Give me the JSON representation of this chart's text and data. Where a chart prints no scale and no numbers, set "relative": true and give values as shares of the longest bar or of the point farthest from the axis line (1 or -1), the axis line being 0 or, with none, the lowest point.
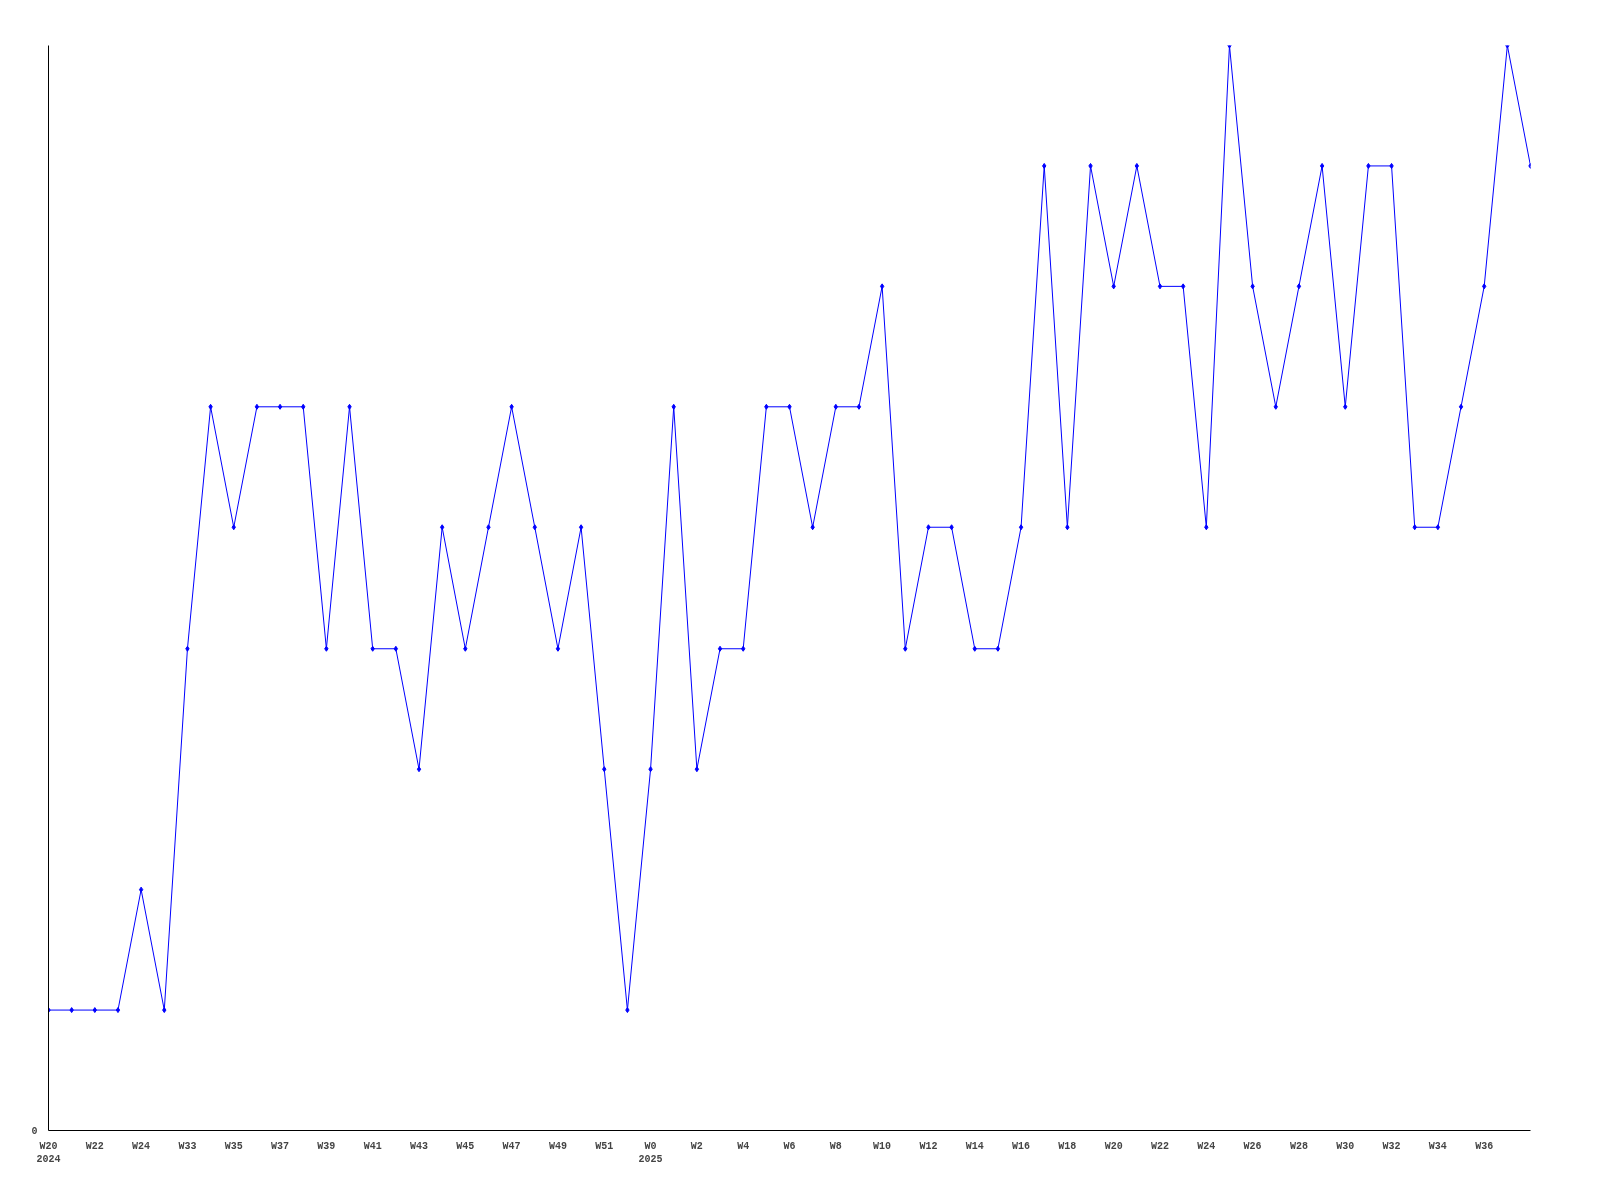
{
  "chart_data": {
    "type": "line",
    "relative": true,
    "marker": "diamond",
    "color": "#0000ff",
    "categories": [
      "W20\n2024",
      null,
      "W22",
      null,
      "W24",
      null,
      "W33",
      null,
      "W35",
      null,
      "W37",
      null,
      "W39",
      null,
      "W41",
      null,
      "W43",
      null,
      "W45",
      null,
      "W47",
      null,
      "W49",
      null,
      "W51",
      null,
      "W0\n2025",
      null,
      "W2",
      null,
      "W4",
      null,
      "W6",
      null,
      "W8",
      null,
      "W10",
      null,
      "W12",
      null,
      "W14",
      null,
      "W16",
      null,
      "W18",
      null,
      "W20",
      null,
      "W22",
      null,
      "W24",
      null,
      "W26",
      null,
      "W28",
      null,
      "W30",
      null,
      "W32",
      null,
      "W34",
      null,
      "W36",
      null,
      null
    ],
    "values": [
      0.111,
      0.111,
      0.111,
      0.111,
      0.222,
      0.111,
      0.444,
      0.667,
      0.556,
      0.667,
      0.667,
      0.667,
      0.444,
      0.667,
      0.444,
      0.444,
      0.333,
      0.556,
      0.444,
      0.556,
      0.667,
      0.556,
      0.444,
      0.556,
      0.333,
      0.111,
      0.333,
      0.667,
      0.333,
      0.444,
      0.444,
      0.667,
      0.667,
      0.556,
      0.667,
      0.667,
      0.778,
      0.444,
      0.556,
      0.556,
      0.444,
      0.444,
      0.556,
      0.889,
      0.556,
      0.889,
      0.778,
      0.889,
      0.778,
      0.778,
      0.556,
      1,
      0.778,
      0.667,
      0.778,
      0.889,
      0.667,
      0.889,
      0.889,
      0.556,
      0.556,
      0.667,
      0.778,
      1,
      0.889
    ],
    "annotations": [
      "0"
    ]
  }
}
